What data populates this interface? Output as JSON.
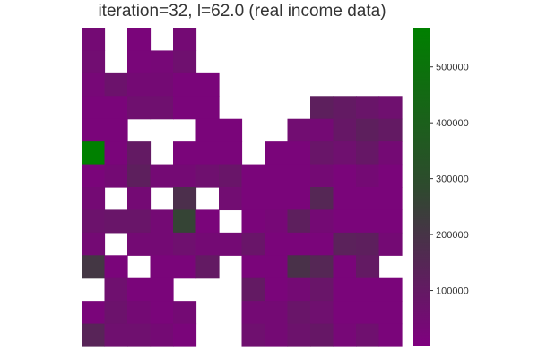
{
  "chart_data": {
    "type": "heatmap",
    "title": "iteration=32, l=62.0 (real income data)",
    "rows": 14,
    "cols": 14,
    "colorbar": {
      "min": 0,
      "max": 570000,
      "ticks": [
        100000,
        200000,
        300000,
        400000,
        500000
      ],
      "tick_labels": [
        "100000",
        "200000",
        "300000",
        "400000",
        "500000"
      ],
      "colors": [
        "#800080",
        "#2e4a2e",
        "#008000"
      ]
    },
    "grid": [
      [
        40000,
        null,
        20000,
        null,
        40000,
        null,
        null,
        null,
        null,
        null,
        null,
        null,
        null,
        null
      ],
      [
        50000,
        null,
        25000,
        30000,
        60000,
        null,
        null,
        null,
        null,
        null,
        null,
        null,
        null,
        null
      ],
      [
        30000,
        70000,
        40000,
        40000,
        20000,
        20000,
        null,
        null,
        null,
        null,
        null,
        null,
        null,
        null
      ],
      [
        20000,
        20000,
        60000,
        60000,
        20000,
        20000,
        null,
        null,
        null,
        null,
        120000,
        100000,
        80000,
        60000
      ],
      [
        20000,
        20000,
        null,
        null,
        null,
        20000,
        20000,
        null,
        null,
        50000,
        40000,
        90000,
        120000,
        100000
      ],
      [
        570000,
        20000,
        100000,
        null,
        20000,
        20000,
        20000,
        null,
        20000,
        20000,
        80000,
        60000,
        90000,
        40000
      ],
      [
        20000,
        40000,
        120000,
        40000,
        40000,
        60000,
        80000,
        20000,
        20000,
        20000,
        40000,
        20000,
        40000,
        20000
      ],
      [
        40000,
        null,
        40000,
        null,
        180000,
        null,
        50000,
        20000,
        20000,
        20000,
        150000,
        20000,
        20000,
        20000
      ],
      [
        70000,
        80000,
        80000,
        40000,
        260000,
        20000,
        null,
        20000,
        30000,
        120000,
        40000,
        20000,
        20000,
        20000
      ],
      [
        40000,
        null,
        40000,
        40000,
        60000,
        40000,
        40000,
        80000,
        20000,
        20000,
        20000,
        130000,
        120000,
        40000
      ],
      [
        210000,
        20000,
        null,
        20000,
        20000,
        100000,
        null,
        20000,
        20000,
        190000,
        150000,
        20000,
        100000,
        null
      ],
      [
        null,
        60000,
        20000,
        20000,
        null,
        null,
        null,
        100000,
        20000,
        40000,
        80000,
        20000,
        20000,
        20000
      ],
      [
        20000,
        70000,
        40000,
        20000,
        40000,
        null,
        null,
        40000,
        40000,
        80000,
        60000,
        20000,
        20000,
        20000
      ],
      [
        140000,
        60000,
        60000,
        40000,
        20000,
        null,
        null,
        60000,
        40000,
        70000,
        90000,
        30000,
        60000,
        20000
      ]
    ]
  }
}
